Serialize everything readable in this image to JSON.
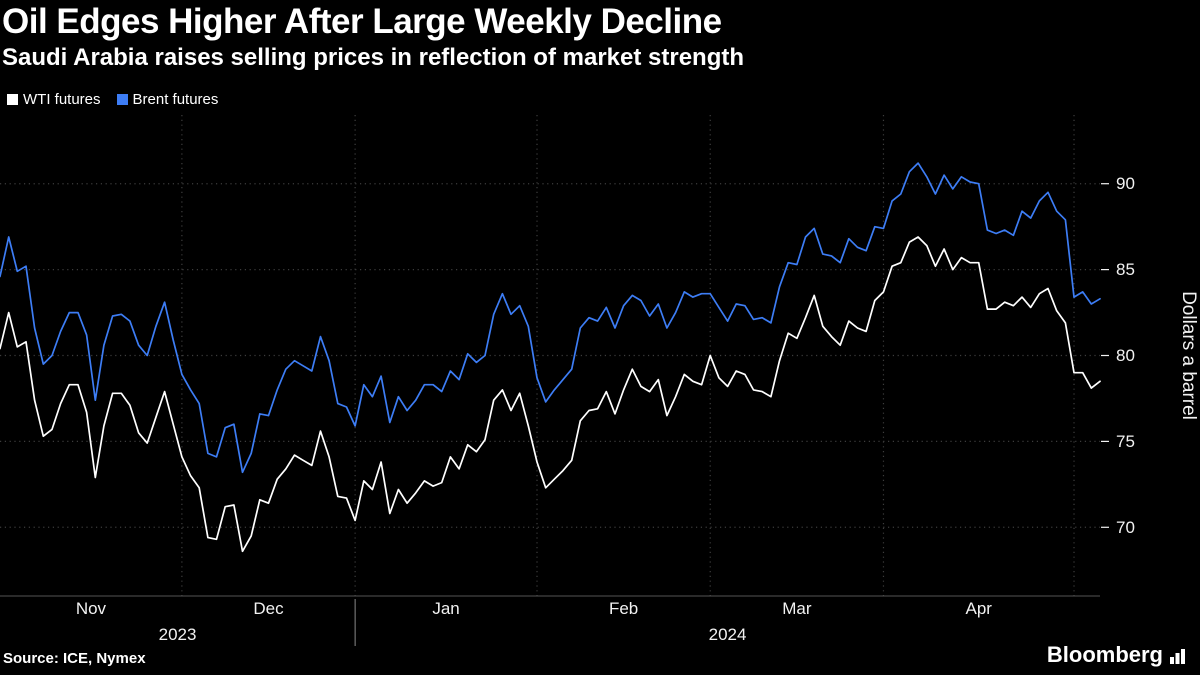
{
  "header": {
    "title": "Oil Edges Higher After Large Weekly Decline",
    "subtitle": "Saudi Arabia raises selling prices in reflection of market strength"
  },
  "legend": [
    {
      "label": "WTI futures",
      "color": "#ffffff"
    },
    {
      "label": "Brent futures",
      "color": "#3d7df5"
    }
  ],
  "footer": {
    "source": "Source: ICE, Nymex",
    "brand": "Bloomberg"
  },
  "colors": {
    "background": "#000000",
    "grid": "#3d3d3d",
    "axis_text": "#f2f2f2",
    "axis_line": "#555555",
    "wti": "#ffffff",
    "brent": "#3d7df5"
  },
  "chart_data": {
    "type": "line",
    "title": "Oil Edges Higher After Large Weekly Decline",
    "subtitle": "Saudi Arabia raises selling prices in reflection of market strength",
    "ylabel": "Dollars a barrel",
    "ylim": [
      66,
      94
    ],
    "yticks": [
      70,
      75,
      80,
      85,
      90
    ],
    "grid": "dotted",
    "legend_position": "top-left",
    "x_unit": "daily closes, Nov 1 2023 - May 6 2024",
    "n_points": 128,
    "months": [
      {
        "label": "Nov",
        "start": 0
      },
      {
        "label": "Dec",
        "start": 21
      },
      {
        "label": "Jan",
        "start": 41
      },
      {
        "label": "Feb",
        "start": 62
      },
      {
        "label": "Mar",
        "start": 82
      },
      {
        "label": "Apr",
        "start": 102
      }
    ],
    "end_boundary": 124,
    "year_separator_index": 41,
    "years": [
      {
        "label": "2023",
        "from": 0,
        "to": 41
      },
      {
        "label": "2024",
        "from": 41,
        "to": 127
      }
    ],
    "series": [
      {
        "name": "WTI futures",
        "color": "#ffffff",
        "values": [
          80.4,
          82.5,
          80.5,
          80.8,
          77.4,
          75.3,
          75.7,
          77.2,
          78.3,
          78.3,
          76.7,
          72.9,
          75.9,
          77.8,
          77.8,
          77.1,
          75.5,
          74.9,
          76.4,
          77.9,
          76.0,
          74.1,
          73.0,
          72.3,
          69.4,
          69.3,
          71.2,
          71.3,
          68.6,
          69.5,
          71.6,
          71.4,
          72.8,
          73.4,
          74.2,
          73.9,
          73.6,
          75.6,
          74.1,
          71.8,
          71.7,
          70.4,
          72.7,
          72.2,
          73.8,
          70.8,
          72.2,
          71.4,
          72.0,
          72.7,
          72.4,
          72.6,
          74.1,
          73.4,
          74.8,
          74.4,
          75.1,
          77.4,
          78.0,
          76.8,
          77.8,
          75.9,
          73.8,
          72.3,
          72.8,
          73.3,
          73.9,
          76.2,
          76.8,
          76.9,
          77.9,
          76.6,
          78.0,
          79.2,
          78.2,
          77.9,
          78.6,
          76.5,
          77.6,
          78.9,
          78.5,
          78.3,
          80.0,
          78.7,
          78.2,
          79.1,
          78.9,
          78.0,
          77.9,
          77.6,
          79.7,
          81.3,
          81.0,
          82.2,
          83.5,
          81.7,
          81.1,
          80.6,
          82.0,
          81.6,
          81.4,
          83.2,
          83.7,
          85.2,
          85.4,
          86.6,
          86.9,
          86.4,
          85.2,
          86.2,
          85.0,
          85.7,
          85.4,
          85.4,
          82.7,
          82.7,
          83.1,
          82.9,
          83.4,
          82.8,
          83.6,
          83.9,
          82.6,
          81.9,
          79.0,
          79.0,
          78.1,
          78.5
        ]
      },
      {
        "name": "Brent futures",
        "color": "#3d7df5",
        "values": [
          84.6,
          86.9,
          84.9,
          85.2,
          81.6,
          79.5,
          80.0,
          81.4,
          82.5,
          82.5,
          81.2,
          77.4,
          80.6,
          82.3,
          82.4,
          82.0,
          80.6,
          80.0,
          81.7,
          83.1,
          80.9,
          78.9,
          78.0,
          77.2,
          74.3,
          74.1,
          75.8,
          76.0,
          73.2,
          74.3,
          76.6,
          76.5,
          78.0,
          79.2,
          79.7,
          79.4,
          79.1,
          81.1,
          79.7,
          77.2,
          77.0,
          75.9,
          78.3,
          77.6,
          78.8,
          76.1,
          77.6,
          76.8,
          77.4,
          78.3,
          78.3,
          77.9,
          79.1,
          78.6,
          80.1,
          79.6,
          80.0,
          82.4,
          83.6,
          82.4,
          82.9,
          81.7,
          78.7,
          77.3,
          78.0,
          78.6,
          79.2,
          81.6,
          82.2,
          82.0,
          82.8,
          81.6,
          82.9,
          83.5,
          83.2,
          82.3,
          83.0,
          81.6,
          82.5,
          83.7,
          83.4,
          83.6,
          83.6,
          82.8,
          82.0,
          83.0,
          82.9,
          82.1,
          82.2,
          81.9,
          84.0,
          85.4,
          85.3,
          86.9,
          87.4,
          85.9,
          85.8,
          85.4,
          86.8,
          86.3,
          86.1,
          87.5,
          87.4,
          89.0,
          89.4,
          90.7,
          91.2,
          90.4,
          89.4,
          90.5,
          89.7,
          90.4,
          90.1,
          90.0,
          87.3,
          87.1,
          87.3,
          87.0,
          88.4,
          88.0,
          89.0,
          89.5,
          88.4,
          87.9,
          83.4,
          83.7,
          83.0,
          83.3
        ]
      }
    ]
  }
}
